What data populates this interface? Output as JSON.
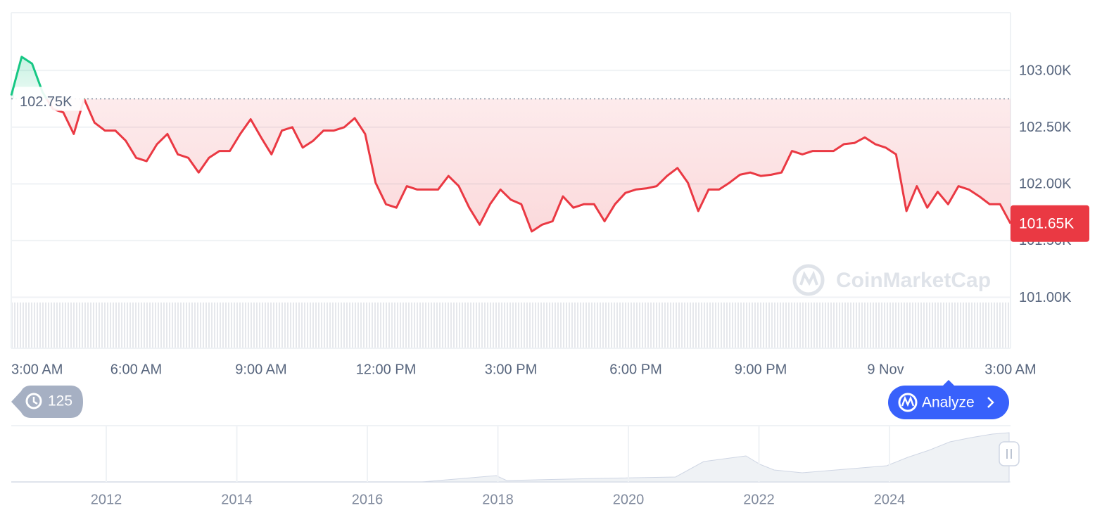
{
  "chart_data": {
    "type": "line",
    "xlim": [
      0,
      24
    ],
    "xticks": [
      {
        "value": 0,
        "label": "3:00 AM"
      },
      {
        "value": 3,
        "label": "6:00 AM"
      },
      {
        "value": 6,
        "label": "9:00 AM"
      },
      {
        "value": 9,
        "label": "12:00 PM"
      },
      {
        "value": 12,
        "label": "3:00 PM"
      },
      {
        "value": 15,
        "label": "6:00 PM"
      },
      {
        "value": 18,
        "label": "9:00 PM"
      },
      {
        "value": 21,
        "label": "9 Nov"
      },
      {
        "value": 24,
        "label": "3:00 AM"
      }
    ],
    "ylim": [
      100550,
      103510
    ],
    "yticks": [
      {
        "value": 101000,
        "label": "101.00K"
      },
      {
        "value": 101500,
        "label": "101.50K"
      },
      {
        "value": 102000,
        "label": "102.00K"
      },
      {
        "value": 102500,
        "label": "102.50K"
      },
      {
        "value": 103000,
        "label": "103.00K"
      }
    ],
    "grid": true,
    "reference_line": {
      "value": 102750,
      "label": "102.75K"
    },
    "price_label": {
      "value": 101650,
      "label": "101.65K"
    },
    "up_color": "#16c784",
    "down_color": "#ea3943",
    "series": [
      {
        "name": "Price",
        "x": [
          0,
          0.25,
          0.5,
          0.75,
          1,
          1.25,
          1.5,
          1.75,
          2,
          2.25,
          2.5,
          2.75,
          3,
          3.25,
          3.5,
          3.75,
          4,
          4.25,
          4.5,
          4.75,
          5,
          5.25,
          5.5,
          5.75,
          6,
          6.25,
          6.5,
          6.75,
          7,
          7.25,
          7.5,
          7.75,
          8,
          8.25,
          8.5,
          8.75,
          9,
          9.25,
          9.5,
          9.75,
          10,
          10.25,
          10.5,
          10.75,
          11,
          11.25,
          11.5,
          11.75,
          12,
          12.25,
          12.5,
          12.75,
          13,
          13.25,
          13.5,
          13.75,
          14,
          14.25,
          14.5,
          14.75,
          15,
          15.25,
          15.5,
          15.75,
          16,
          16.25,
          16.5,
          16.75,
          17,
          17.25,
          17.5,
          17.75,
          18,
          18.25,
          18.5,
          18.75,
          19,
          19.25,
          19.5,
          19.75,
          20,
          20.25,
          20.5,
          20.75,
          21,
          21.25,
          21.5,
          21.75,
          22,
          22.25,
          22.5,
          22.75,
          23,
          23.25,
          23.5,
          23.75,
          24
        ],
        "values": [
          102780,
          103120,
          103060,
          102810,
          102660,
          102630,
          102440,
          102750,
          102540,
          102470,
          102470,
          102380,
          102230,
          102200,
          102350,
          102440,
          102260,
          102230,
          102100,
          102230,
          102290,
          102290,
          102440,
          102570,
          102410,
          102260,
          102470,
          102500,
          102320,
          102380,
          102470,
          102470,
          102500,
          102580,
          102440,
          102010,
          101820,
          101790,
          101980,
          101950,
          101950,
          101950,
          102070,
          101980,
          101790,
          101640,
          101820,
          101950,
          101860,
          101820,
          101580,
          101640,
          101670,
          101890,
          101790,
          101820,
          101820,
          101670,
          101820,
          101920,
          101950,
          101960,
          101980,
          102070,
          102140,
          102010,
          101760,
          101950,
          101950,
          102010,
          102080,
          102100,
          102070,
          102080,
          102100,
          102290,
          102260,
          102290,
          102290,
          102290,
          102350,
          102360,
          102410,
          102350,
          102320,
          102260,
          101760,
          101980,
          101790,
          101930,
          101820,
          101980,
          101950,
          101890,
          101820,
          101820,
          101650
        ]
      }
    ]
  },
  "watermark": "CoinMarketCap",
  "history_button": "125",
  "analyze_button": "Analyze",
  "navigator": {
    "labels": [
      "2012",
      "2014",
      "2016",
      "2018",
      "2020",
      "2022",
      "2024"
    ]
  }
}
